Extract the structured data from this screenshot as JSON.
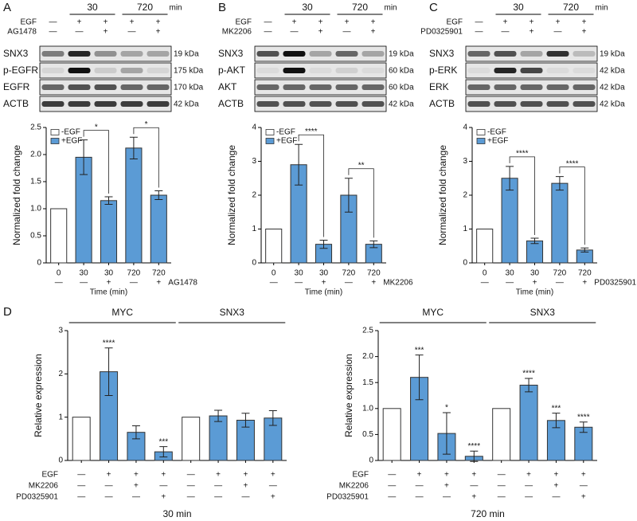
{
  "blots": [
    {
      "panel": "A",
      "time_unit": "min",
      "times": [
        {
          "label": "30",
          "lanes": [
            1,
            2
          ]
        },
        {
          "label": "720",
          "lanes": [
            3,
            4
          ]
        }
      ],
      "treatments": [
        {
          "label": "EGF",
          "marks": [
            "—",
            "+",
            "+",
            "+",
            "+"
          ]
        },
        {
          "label": "AG1478",
          "marks": [
            "—",
            "—",
            "+",
            "—",
            "+"
          ]
        }
      ],
      "bands": [
        {
          "label": "SNX3",
          "size": "19 kDa"
        },
        {
          "label": "p-EGFR",
          "size": "175 kDa"
        },
        {
          "label": "EGFR",
          "size": "170 kDa"
        },
        {
          "label": "ACTB",
          "size": "42 kDa"
        }
      ]
    },
    {
      "panel": "B",
      "time_unit": "min",
      "times": [
        {
          "label": "30",
          "lanes": [
            1,
            2
          ]
        },
        {
          "label": "720",
          "lanes": [
            3,
            4
          ]
        }
      ],
      "treatments": [
        {
          "label": "EGF",
          "marks": [
            "—",
            "+",
            "+",
            "+",
            "+"
          ]
        },
        {
          "label": "MK2206",
          "marks": [
            "—",
            "—",
            "+",
            "—",
            "+"
          ]
        }
      ],
      "bands": [
        {
          "label": "SNX3",
          "size": "19 kDa"
        },
        {
          "label": "p-AKT",
          "size": "60 kDa"
        },
        {
          "label": "AKT",
          "size": "60 kDa"
        },
        {
          "label": "ACTB",
          "size": "42 kDa"
        }
      ]
    },
    {
      "panel": "C",
      "time_unit": "min",
      "times": [
        {
          "label": "30",
          "lanes": [
            1,
            2
          ]
        },
        {
          "label": "720",
          "lanes": [
            3,
            4
          ]
        }
      ],
      "treatments": [
        {
          "label": "EGF",
          "marks": [
            "—",
            "+",
            "+",
            "+",
            "+"
          ]
        },
        {
          "label": "PD0325901",
          "marks": [
            "—",
            "—",
            "+",
            "—",
            "+"
          ]
        }
      ],
      "bands": [
        {
          "label": "SNX3",
          "size": "19 kDa"
        },
        {
          "label": "p-ERK",
          "size": "42 kDa"
        },
        {
          "label": "ERK",
          "size": "42 kDa"
        },
        {
          "label": "ACTB",
          "size": "42 kDa"
        }
      ]
    }
  ],
  "chart_data": [
    {
      "type": "bar",
      "ylabel": "Normalized fold change",
      "xlabel": "Time (min)",
      "categories": [
        "0",
        "30",
        "30",
        "720",
        "720"
      ],
      "treatment": {
        "label": "AG1478",
        "marks": [
          "—",
          "—",
          "+",
          "—",
          "+"
        ]
      },
      "values": [
        1.0,
        1.95,
        1.15,
        2.12,
        1.25
      ],
      "errors": [
        null,
        0.32,
        0.07,
        0.2,
        0.08
      ],
      "bar_colors": [
        "#ffffff",
        "#5b9bd5",
        "#5b9bd5",
        "#5b9bd5",
        "#5b9bd5"
      ],
      "ylim": [
        0,
        2.5
      ],
      "yticks": [
        0,
        0.5,
        {
          "value": 1,
          "label": "1.0"
        },
        1.5,
        {
          "value": 2,
          "label": "2.0"
        },
        2.5
      ],
      "legend": [
        {
          "name": "-EGF",
          "color": "#ffffff"
        },
        {
          "name": "+EGF",
          "color": "#5b9bd5"
        }
      ],
      "significance": [
        {
          "bars": [
            1,
            2
          ],
          "label": "*"
        },
        {
          "bars": [
            3,
            4
          ],
          "label": "*"
        }
      ]
    },
    {
      "type": "bar",
      "ylabel": "Normalized fold change",
      "xlabel": "Time (min)",
      "categories": [
        "0",
        "30",
        "30",
        "720",
        "720"
      ],
      "treatment": {
        "label": "MK2206",
        "marks": [
          "—",
          "—",
          "+",
          "—",
          "+"
        ]
      },
      "values": [
        1.0,
        2.9,
        0.55,
        2.0,
        0.55
      ],
      "errors": [
        null,
        0.6,
        0.12,
        0.5,
        0.1
      ],
      "bar_colors": [
        "#ffffff",
        "#5b9bd5",
        "#5b9bd5",
        "#5b9bd5",
        "#5b9bd5"
      ],
      "ylim": [
        0,
        4
      ],
      "yticks": [
        0,
        1,
        2,
        3,
        4
      ],
      "legend": [
        {
          "name": "-EGF",
          "color": "#ffffff"
        },
        {
          "name": "+EGF",
          "color": "#5b9bd5"
        }
      ],
      "significance": [
        {
          "bars": [
            1,
            2
          ],
          "label": "****"
        },
        {
          "bars": [
            3,
            4
          ],
          "label": "**"
        }
      ]
    },
    {
      "type": "bar",
      "ylabel": "Normalized fold change",
      "xlabel": "Time (min)",
      "categories": [
        "0",
        "30",
        "30",
        "720",
        "720"
      ],
      "treatment": {
        "label": "PD0325901",
        "marks": [
          "—",
          "—",
          "+",
          "—",
          "+"
        ]
      },
      "values": [
        1.0,
        2.5,
        0.65,
        2.35,
        0.38
      ],
      "errors": [
        null,
        0.35,
        0.08,
        0.2,
        0.06
      ],
      "bar_colors": [
        "#ffffff",
        "#5b9bd5",
        "#5b9bd5",
        "#5b9bd5",
        "#5b9bd5"
      ],
      "ylim": [
        0,
        4
      ],
      "yticks": [
        0,
        1,
        2,
        3,
        4
      ],
      "legend": [
        {
          "name": "-EGF",
          "color": "#ffffff"
        },
        {
          "name": "+EGF",
          "color": "#5b9bd5"
        }
      ],
      "significance": [
        {
          "bars": [
            1,
            2
          ],
          "label": "****"
        },
        {
          "bars": [
            3,
            4
          ],
          "label": "****"
        }
      ]
    },
    {
      "type": "bar",
      "panel": "D",
      "title": "30 min",
      "ylabel": "Relative expression",
      "groups": [
        {
          "label": "MYC",
          "bars": [
            0,
            3
          ]
        },
        {
          "label": "SNX3",
          "bars": [
            4,
            7
          ]
        }
      ],
      "rows": [
        {
          "label": "EGF",
          "marks": [
            "—",
            "+",
            "+",
            "+",
            "—",
            "+",
            "+",
            "+"
          ]
        },
        {
          "label": "MK2206",
          "marks": [
            "—",
            "—",
            "+",
            "—",
            "—",
            "—",
            "+",
            "—"
          ]
        },
        {
          "label": "PD0325901",
          "marks": [
            "—",
            "—",
            "—",
            "+",
            "—",
            "—",
            "—",
            "+"
          ]
        }
      ],
      "values": [
        1.0,
        2.05,
        0.65,
        0.2,
        1.0,
        1.03,
        0.93,
        0.98
      ],
      "errors": [
        null,
        0.55,
        0.15,
        0.12,
        null,
        0.13,
        0.16,
        0.17
      ],
      "bar_colors": [
        "#ffffff",
        "#5b9bd5",
        "#5b9bd5",
        "#5b9bd5",
        "#ffffff",
        "#5b9bd5",
        "#5b9bd5",
        "#5b9bd5"
      ],
      "ylim": [
        0,
        3
      ],
      "yticks": [
        0,
        1,
        2,
        3
      ],
      "annotations": [
        {
          "bar": 1,
          "label": "****"
        },
        {
          "bar": 3,
          "label": "***"
        }
      ]
    },
    {
      "type": "bar",
      "title": "720 min",
      "ylabel": "Relative expression",
      "groups": [
        {
          "label": "MYC",
          "bars": [
            0,
            3
          ]
        },
        {
          "label": "SNX3",
          "bars": [
            4,
            7
          ]
        }
      ],
      "rows": [
        {
          "label": "EGF",
          "marks": [
            "—",
            "+",
            "+",
            "+",
            "—",
            "+",
            "+",
            "+"
          ]
        },
        {
          "label": "MK2206",
          "marks": [
            "—",
            "—",
            "+",
            "—",
            "—",
            "—",
            "+",
            "—"
          ]
        },
        {
          "label": "PD0325901",
          "marks": [
            "—",
            "—",
            "—",
            "+",
            "—",
            "—",
            "—",
            "+"
          ]
        }
      ],
      "values": [
        1.0,
        1.6,
        0.52,
        0.08,
        1.0,
        1.45,
        0.77,
        0.64
      ],
      "errors": [
        null,
        0.43,
        0.4,
        0.1,
        null,
        0.13,
        0.14,
        0.1
      ],
      "bar_colors": [
        "#ffffff",
        "#5b9bd5",
        "#5b9bd5",
        "#5b9bd5",
        "#ffffff",
        "#5b9bd5",
        "#5b9bd5",
        "#5b9bd5"
      ],
      "ylim": [
        0,
        2.5
      ],
      "yticks": [
        0,
        0.5,
        {
          "value": 1,
          "label": "1.0"
        },
        1.5,
        {
          "value": 2,
          "label": "2.0"
        },
        2.5
      ],
      "annotations": [
        {
          "bar": 1,
          "label": "***"
        },
        {
          "bar": 2,
          "label": "*"
        },
        {
          "bar": 3,
          "label": "****"
        },
        {
          "bar": 5,
          "label": "****"
        },
        {
          "bar": 6,
          "label": "***"
        },
        {
          "bar": 7,
          "label": "****"
        }
      ]
    }
  ]
}
